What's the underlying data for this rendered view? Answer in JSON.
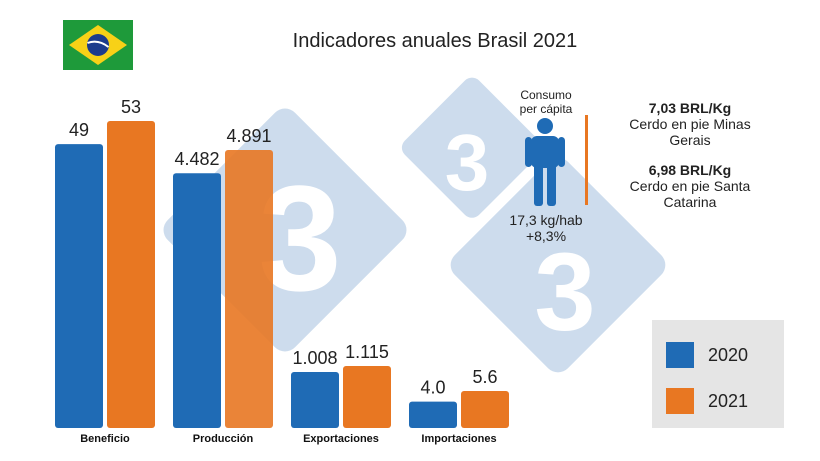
{
  "title": "Indicadores anuales Brasil 2021",
  "colors": {
    "series_2020": "#1f6bb5",
    "series_2021": "#e87722",
    "watermark": "#c5d7ea"
  },
  "chart_data": {
    "type": "bar",
    "categories": [
      "Beneficio",
      "Producción",
      "Exportaciones",
      "Importaciones"
    ],
    "series": [
      {
        "name": "2020",
        "values": [
          49,
          4.482,
          1.008,
          4.0
        ],
        "labels": [
          "49",
          "4.482",
          "1.008",
          "4.0"
        ]
      },
      {
        "name": "2021",
        "values": [
          53,
          4.891,
          1.115,
          5.6
        ],
        "labels": [
          "53",
          "4.891",
          "1.115",
          "5.6"
        ]
      }
    ],
    "title": "Indicadores anuales Brasil 2021",
    "xlabel": "",
    "ylabel": "",
    "grid": false,
    "legend_position": "bottom-right"
  },
  "consumo": {
    "title_line1": "Consumo",
    "title_line2": "per cápita",
    "value": "17,3 kg/hab",
    "change": "+8,3%"
  },
  "prices": [
    {
      "value": "7,03  BRL/Kg",
      "desc_line1": "Cerdo en pie Minas",
      "desc_line2": "Gerais"
    },
    {
      "value": "6,98 BRL/Kg",
      "desc_line1": "Cerdo en pie Santa",
      "desc_line2": "Catarina"
    }
  ],
  "legend": [
    {
      "label": "2020"
    },
    {
      "label": "2021"
    }
  ]
}
